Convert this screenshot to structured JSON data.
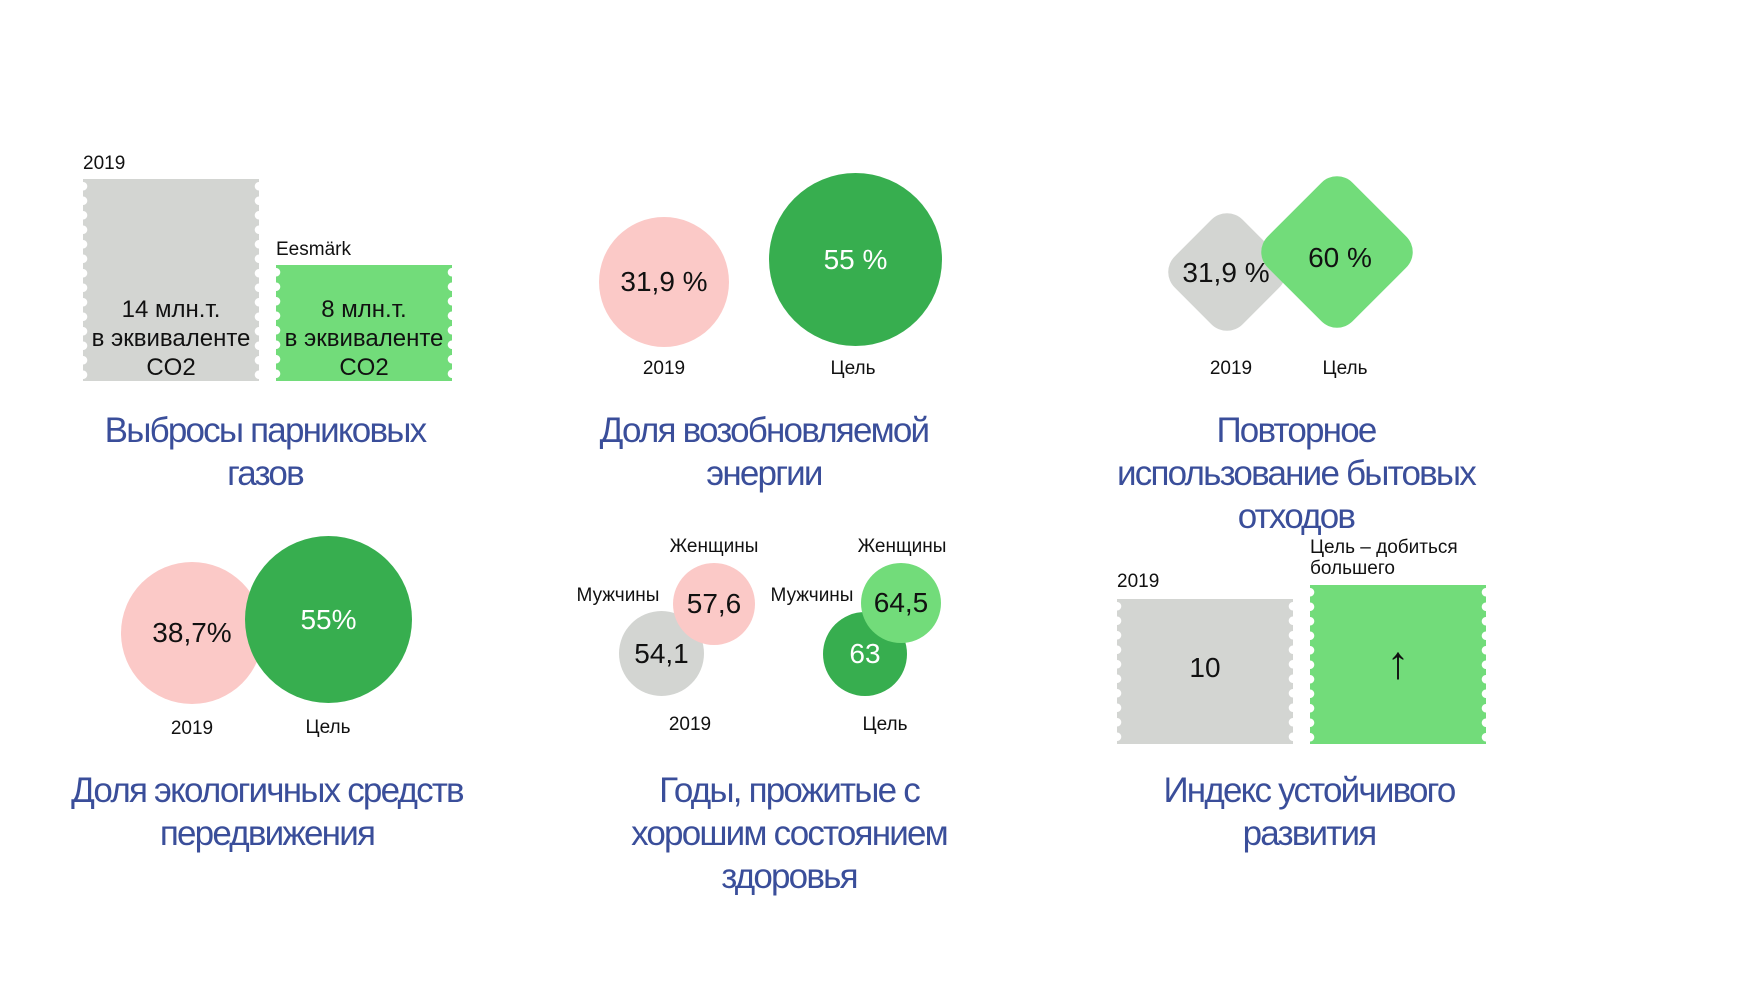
{
  "colors": {
    "grey": "#d3d5d2",
    "light_green": "#72dc7a",
    "dark_green": "#37ae4f",
    "pink": "#fbc9c7",
    "title_blue": "#3a4e9a"
  },
  "chart_data": [
    {
      "id": "emissions",
      "type": "bar",
      "title": "Выбросы парниковых газов",
      "unit": "млн.т. в эквиваленте CO2",
      "categories": [
        "2019",
        "Eesmärk"
      ],
      "values": [
        14,
        8
      ],
      "value_labels": [
        "14 млн.т.\nв эквиваленте\nCO2",
        "8  млн.т.\nв эквиваленте\nCO2"
      ]
    },
    {
      "id": "renewable",
      "type": "bubble",
      "title": "Доля возобновляемой энергии",
      "categories": [
        "2019",
        "Цель"
      ],
      "values": [
        31.9,
        55
      ],
      "value_labels": [
        "31,9 %",
        "55 %"
      ]
    },
    {
      "id": "recycling",
      "type": "bubble",
      "title": "Повторное использование бытовых отходов",
      "categories": [
        "2019",
        "Цель"
      ],
      "values": [
        31.9,
        60
      ],
      "value_labels": [
        "31,9 %",
        "60 %"
      ]
    },
    {
      "id": "transport",
      "type": "bubble",
      "title": "Доля экологичных средств передвижения",
      "categories": [
        "2019",
        "Цель"
      ],
      "values": [
        38.7,
        55
      ],
      "value_labels": [
        "38,7%",
        "55%"
      ]
    },
    {
      "id": "healthy_years",
      "type": "bubble",
      "title": "Годы, прожитые с хорошим состоянием здоровья",
      "categories": [
        "2019",
        "Цель"
      ],
      "series": [
        {
          "name": "Мужчины",
          "values": [
            54.1,
            63
          ],
          "value_labels": [
            "54,1",
            "63"
          ]
        },
        {
          "name": "Женщины",
          "values": [
            57.6,
            64.5
          ],
          "value_labels": [
            "57,6",
            "64,5"
          ]
        }
      ]
    },
    {
      "id": "sdi",
      "type": "bar",
      "title": "Индекс устойчивого развития",
      "categories": [
        "2019",
        "Цель – добиться большего"
      ],
      "values": [
        10,
        null
      ],
      "value_labels": [
        "10",
        "↑"
      ]
    }
  ]
}
